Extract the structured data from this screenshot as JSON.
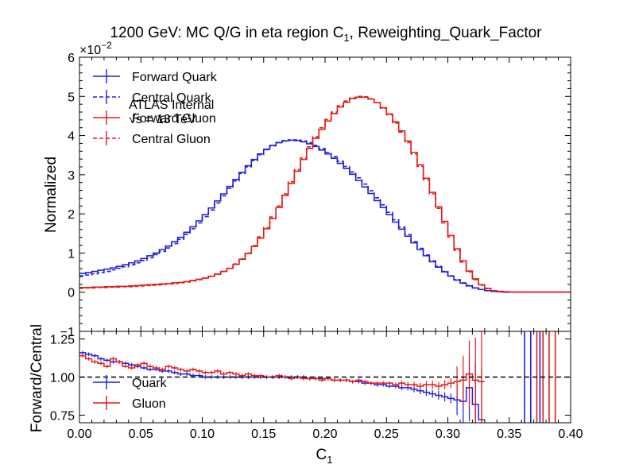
{
  "chart_data": {
    "type": "line",
    "title": "1200 GeV: MC Q/G in eta region C",
    "title_sub": "1",
    "title_suffix": ", Reweighting_Quark_Factor",
    "x_label": "C",
    "x_label_sub": "1",
    "x_ticks": [
      "0.00",
      "0.05",
      "0.10",
      "0.15",
      "0.20",
      "0.25",
      "0.30",
      "0.35",
      "0.40"
    ],
    "xlim": [
      0.0,
      0.4
    ],
    "top_panel": {
      "ylabel": "Normalized",
      "ylim": [
        -1,
        6
      ],
      "y_scale_label": "×10",
      "y_scale_exponent": "−2",
      "y_ticks": [
        "−1",
        "0",
        "1",
        "2",
        "3",
        "4",
        "5",
        "6"
      ],
      "annotation_line1": "ATLAS Internal",
      "annotation_line2": "√s = 13 TeV",
      "legend_position": "upper-left",
      "bin_width": 0.005,
      "series": [
        {
          "name": "Forward Quark",
          "color": "#1f1fdb",
          "style": "solid",
          "values": [
            0.48,
            0.5,
            0.53,
            0.56,
            0.59,
            0.62,
            0.66,
            0.7,
            0.75,
            0.8,
            0.86,
            0.93,
            1.0,
            1.09,
            1.18,
            1.29,
            1.4,
            1.53,
            1.67,
            1.82,
            1.98,
            2.15,
            2.33,
            2.51,
            2.7,
            2.88,
            3.06,
            3.23,
            3.39,
            3.53,
            3.65,
            3.75,
            3.82,
            3.86,
            3.88,
            3.87,
            3.84,
            3.79,
            3.72,
            3.63,
            3.53,
            3.42,
            3.29,
            3.16,
            3.01,
            2.85,
            2.69,
            2.52,
            2.34,
            2.16,
            1.98,
            1.79,
            1.61,
            1.43,
            1.26,
            1.09,
            0.93,
            0.78,
            0.64,
            0.52,
            0.41,
            0.31,
            0.23,
            0.16,
            0.11,
            0.07,
            0.04,
            0.02,
            0.01,
            0.0,
            0.0,
            0.0,
            0.0,
            0.0,
            0.0,
            0.0,
            0.0,
            0.0,
            0.0,
            0.0
          ]
        },
        {
          "name": "Central Quark",
          "color": "#1f1fdb",
          "style": "dashed",
          "values": [
            0.42,
            0.44,
            0.47,
            0.5,
            0.53,
            0.57,
            0.61,
            0.65,
            0.7,
            0.75,
            0.81,
            0.88,
            0.96,
            1.04,
            1.13,
            1.24,
            1.35,
            1.48,
            1.62,
            1.77,
            1.93,
            2.1,
            2.28,
            2.46,
            2.65,
            2.84,
            3.03,
            3.2,
            3.36,
            3.51,
            3.64,
            3.74,
            3.82,
            3.87,
            3.89,
            3.89,
            3.86,
            3.82,
            3.75,
            3.67,
            3.57,
            3.46,
            3.34,
            3.21,
            3.07,
            2.92,
            2.76,
            2.59,
            2.41,
            2.23,
            2.04,
            1.85,
            1.66,
            1.47,
            1.29,
            1.12,
            0.95,
            0.8,
            0.66,
            0.53,
            0.42,
            0.32,
            0.24,
            0.17,
            0.11,
            0.07,
            0.04,
            0.02,
            0.01,
            0.0,
            0.0,
            0.0,
            0.0,
            0.0,
            0.0,
            0.0,
            0.0,
            0.0,
            0.0,
            0.0
          ]
        },
        {
          "name": "Forward Gluon",
          "color": "#e41a1a",
          "style": "solid",
          "values": [
            0.12,
            0.12,
            0.13,
            0.13,
            0.14,
            0.14,
            0.15,
            0.15,
            0.16,
            0.17,
            0.18,
            0.19,
            0.2,
            0.21,
            0.22,
            0.24,
            0.25,
            0.27,
            0.3,
            0.33,
            0.36,
            0.41,
            0.46,
            0.53,
            0.61,
            0.71,
            0.84,
            0.99,
            1.17,
            1.38,
            1.62,
            1.88,
            2.16,
            2.47,
            2.78,
            3.09,
            3.39,
            3.67,
            3.93,
            4.16,
            4.37,
            4.56,
            4.73,
            4.85,
            4.94,
            4.98,
            4.98,
            4.93,
            4.84,
            4.71,
            4.55,
            4.35,
            4.12,
            3.86,
            3.57,
            3.25,
            2.91,
            2.55,
            2.18,
            1.81,
            1.45,
            1.11,
            0.8,
            0.54,
            0.34,
            0.19,
            0.1,
            0.04,
            0.02,
            0.01,
            0.0,
            0.0,
            0.0,
            0.0,
            0.0,
            0.0,
            0.0,
            0.0,
            0.0,
            0.0
          ]
        },
        {
          "name": "Central Gluon",
          "color": "#e41a1a",
          "style": "dashed",
          "values": [
            0.1,
            0.11,
            0.11,
            0.12,
            0.12,
            0.13,
            0.13,
            0.14,
            0.14,
            0.15,
            0.16,
            0.17,
            0.18,
            0.19,
            0.21,
            0.22,
            0.24,
            0.26,
            0.29,
            0.32,
            0.36,
            0.4,
            0.46,
            0.53,
            0.61,
            0.72,
            0.85,
            1.0,
            1.19,
            1.41,
            1.65,
            1.92,
            2.2,
            2.51,
            2.82,
            3.13,
            3.43,
            3.71,
            3.97,
            4.2,
            4.41,
            4.6,
            4.76,
            4.88,
            4.96,
            5.0,
            4.99,
            4.94,
            4.84,
            4.7,
            4.53,
            4.32,
            4.09,
            3.82,
            3.53,
            3.21,
            2.87,
            2.51,
            2.14,
            1.77,
            1.41,
            1.07,
            0.77,
            0.52,
            0.32,
            0.18,
            0.09,
            0.04,
            0.02,
            0.01,
            0.0,
            0.0,
            0.0,
            0.0,
            0.0,
            0.0,
            0.0,
            0.0,
            0.0,
            0.0
          ]
        }
      ]
    },
    "ratio_panel": {
      "ylabel": "Forward/Central",
      "ylim": [
        0.7,
        1.3
      ],
      "y_ticks": [
        "0.75",
        "1.00",
        "1.25"
      ],
      "reference_line": 1.0,
      "legend_position": "lower-left",
      "series": [
        {
          "name": "Quark",
          "color": "#1f1fdb",
          "values": [
            1.16,
            1.15,
            1.14,
            1.12,
            1.11,
            1.1,
            1.1,
            1.09,
            1.08,
            1.07,
            1.06,
            1.05,
            1.05,
            1.04,
            1.04,
            1.03,
            1.02,
            1.02,
            1.01,
            1.01,
            1.0,
            1.0,
            1.0,
            1.0,
            1.0,
            1.0,
            1.0,
            1.0,
            1.0,
            1.0,
            1.0,
            1.0,
            1.0,
            1.0,
            1.0,
            1.0,
            1.0,
            0.99,
            0.99,
            0.99,
            0.99,
            0.98,
            0.98,
            0.98,
            0.97,
            0.97,
            0.96,
            0.96,
            0.95,
            0.95,
            0.94,
            0.94,
            0.93,
            0.93,
            0.92,
            0.91,
            0.9,
            0.89,
            0.88,
            0.87,
            0.86,
            0.85,
            0.84,
            0.93,
            0.82,
            0.72
          ]
        },
        {
          "name": "Gluon",
          "color": "#e41a1a",
          "values": [
            1.14,
            1.12,
            1.1,
            1.09,
            1.07,
            1.12,
            1.1,
            1.07,
            1.06,
            1.08,
            1.09,
            1.07,
            1.06,
            1.05,
            1.07,
            1.06,
            1.05,
            1.04,
            1.05,
            1.04,
            1.03,
            1.03,
            1.04,
            1.02,
            1.03,
            1.02,
            1.01,
            1.02,
            1.01,
            1.01,
            1.0,
            1.0,
            1.01,
            1.0,
            0.99,
            1.0,
            0.99,
            0.99,
            0.99,
            0.98,
            0.99,
            0.98,
            0.98,
            0.98,
            0.97,
            0.98,
            0.97,
            0.96,
            0.96,
            0.96,
            0.96,
            0.95,
            0.96,
            0.95,
            0.95,
            0.94,
            0.95,
            0.95,
            0.94,
            0.95,
            0.96,
            0.97,
            0.98,
            1.02,
            0.98,
            0.97
          ]
        }
      ]
    }
  }
}
